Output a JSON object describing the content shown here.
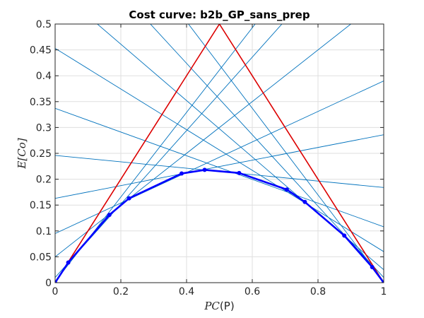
{
  "chart_data": {
    "type": "line",
    "title": "Cost curve: b2b_GP_sans_prep",
    "xlabel": {
      "italic": "PC",
      "open": "(",
      "upright": "P",
      "close": ")"
    },
    "ylabel": {
      "italic": "E[Co]"
    },
    "xlim": [
      0,
      1
    ],
    "ylim": [
      0,
      0.5
    ],
    "xticks": [
      0,
      0.2,
      0.4,
      0.6,
      0.8,
      1
    ],
    "xtick_labels": [
      "0",
      "0.2",
      "0.4",
      "0.6",
      "0.8",
      "1"
    ],
    "yticks": [
      0,
      0.05,
      0.1,
      0.15,
      0.2,
      0.25,
      0.3,
      0.35,
      0.4,
      0.45,
      0.5
    ],
    "ytick_labels": [
      "0",
      "0.05",
      "0.1",
      "0.15",
      "0.2",
      "0.25",
      "0.3",
      "0.35",
      "0.4",
      "0.45",
      "0.5"
    ],
    "grid": true,
    "colors": {
      "trivial": "#dd0000",
      "lines": "#0072bd",
      "envelope": "#0000ff"
    },
    "trivial_classifier": {
      "x": [
        0,
        0.5,
        1
      ],
      "y": [
        0,
        0.5,
        0
      ]
    },
    "cost_lines": [
      {
        "y0": 0,
        "y1": 1
      },
      {
        "y0": 0.002,
        "y1": 0.82
      },
      {
        "y0": 0.01,
        "y1": 0.72
      },
      {
        "y0": 0.05,
        "y1": 0.55
      },
      {
        "y0": 0.095,
        "y1": 0.39
      },
      {
        "y0": 0.163,
        "y1": 0.286
      },
      {
        "y0": 0.246,
        "y1": 0.184
      },
      {
        "y0": 0.337,
        "y1": 0.108
      },
      {
        "y0": 0.453,
        "y1": 0.06
      },
      {
        "y0": 0.57,
        "y1": 0.025
      },
      {
        "y0": 0.7,
        "y1": 0.01
      },
      {
        "y0": 0.84,
        "y1": 0.002
      },
      {
        "y0": 1,
        "y1": 0
      }
    ],
    "lower_envelope": {
      "x": [
        0,
        0.04,
        0.165,
        0.225,
        0.385,
        0.455,
        0.56,
        0.705,
        0.76,
        0.88,
        0.965,
        1
      ],
      "y": [
        0,
        0.039,
        0.131,
        0.163,
        0.211,
        0.218,
        0.212,
        0.18,
        0.156,
        0.091,
        0.03,
        0
      ]
    }
  }
}
